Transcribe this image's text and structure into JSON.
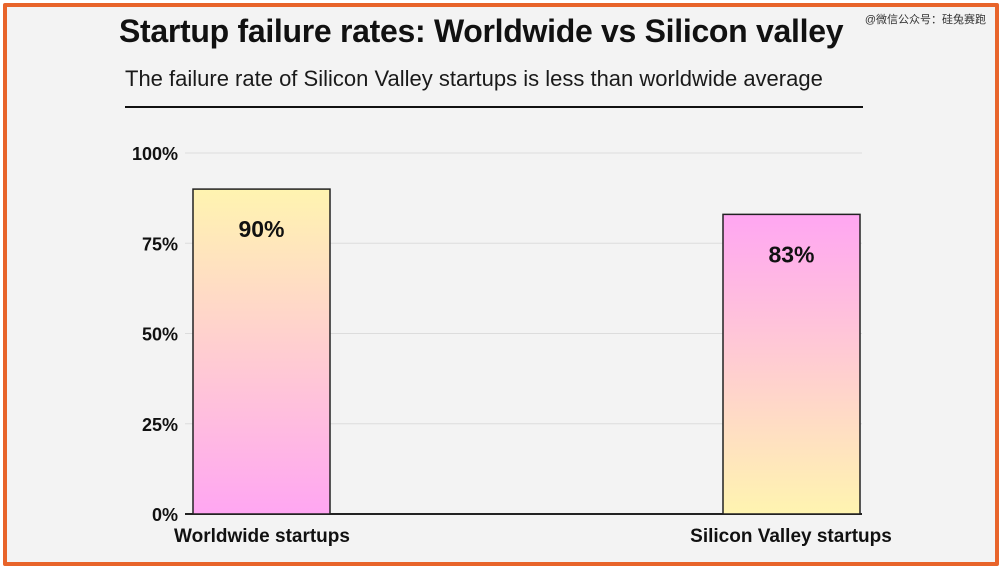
{
  "watermark": "@微信公众号：硅兔赛跑",
  "chart_data": {
    "type": "bar",
    "title": "Startup failure rates: Worldwide vs Silicon valley",
    "subtitle": "The failure rate of Silicon Valley startups is less than worldwide average",
    "categories": [
      "Worldwide startups",
      "Silicon Valley startups"
    ],
    "values": [
      90,
      83
    ],
    "value_labels": [
      "90%",
      "83%"
    ],
    "ylim": [
      0,
      100
    ],
    "yticks": [
      0,
      25,
      50,
      75,
      100
    ],
    "ytick_labels": [
      "0%",
      "25%",
      "50%",
      "75%",
      "100%"
    ],
    "grid": true,
    "colors": {
      "frame": "#e8642a",
      "bar1_top": "#fff4b0",
      "bar1_bottom": "#ffa6f2",
      "bar2_top": "#ffa6f2",
      "bar2_bottom": "#fff4b0",
      "grid": "#dcdcdc",
      "axis": "#222222"
    }
  }
}
